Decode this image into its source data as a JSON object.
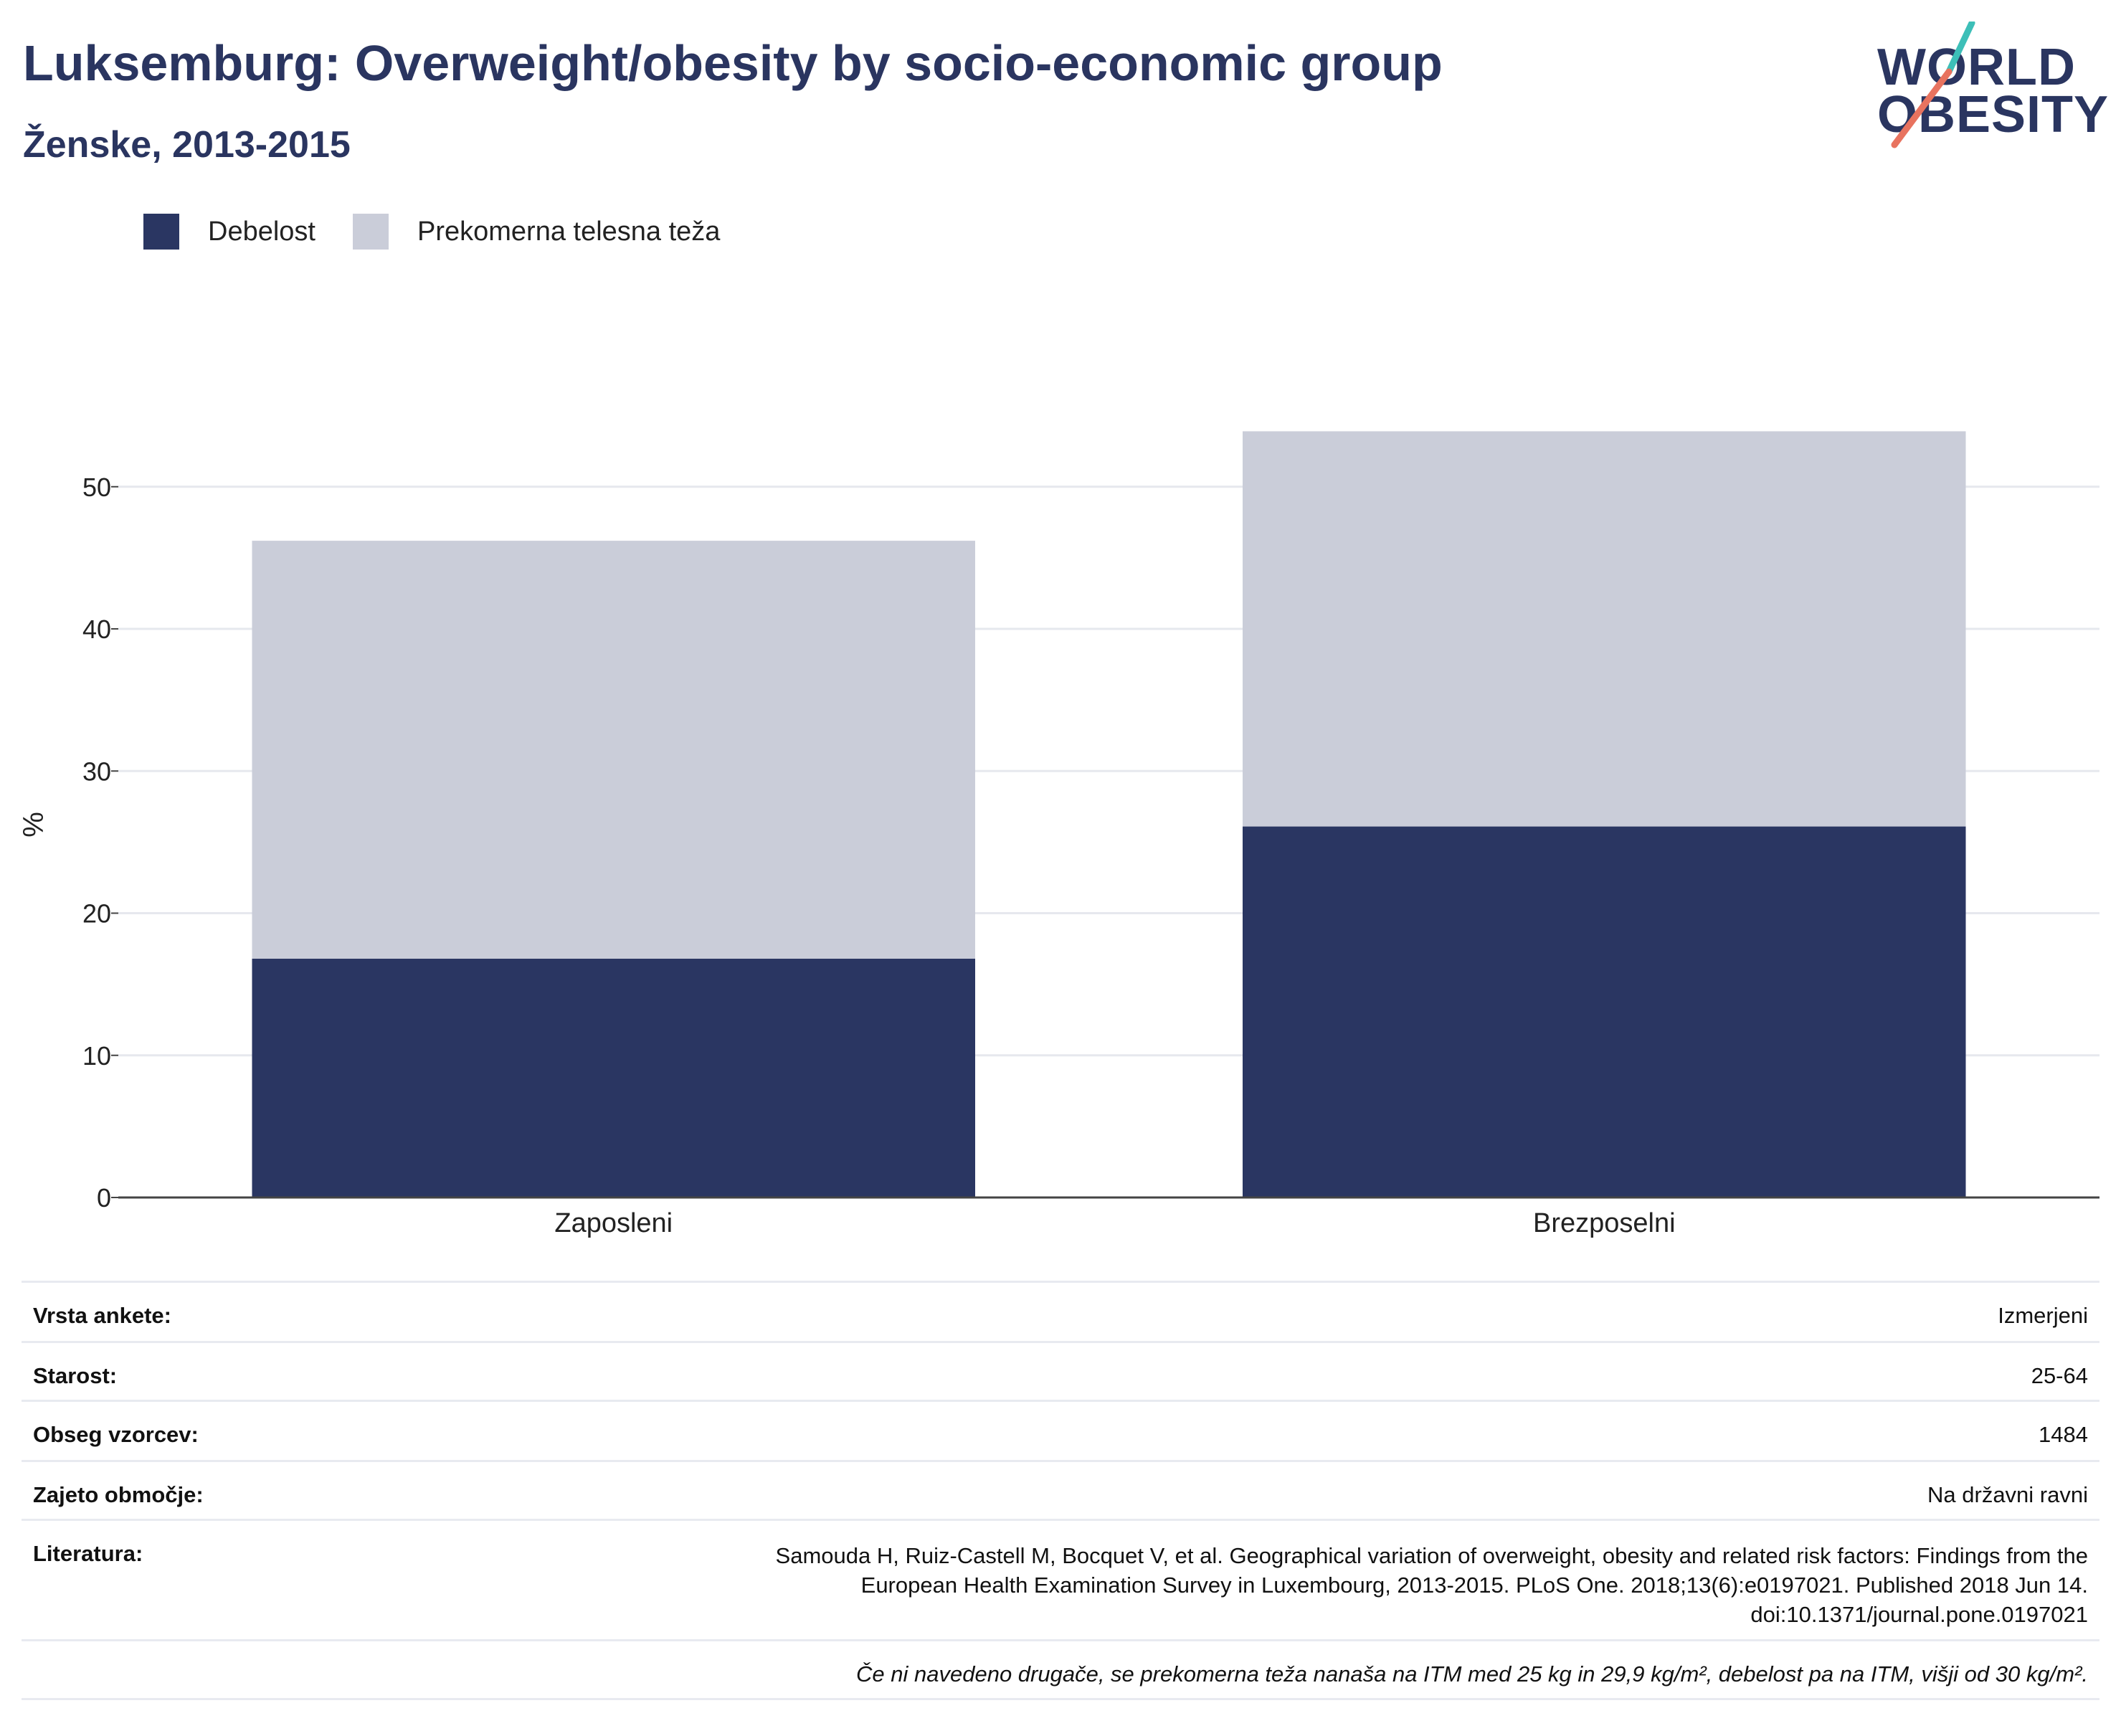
{
  "header": {
    "title": "Luksemburg: Overweight/obesity by socio-economic group",
    "subtitle": "Ženske, 2013-2015"
  },
  "logo": {
    "line1": "WORLD",
    "line2": "OBESITY"
  },
  "chart_data": {
    "type": "bar",
    "stacked": true,
    "categories": [
      "Zaposleni",
      "Brezposelni"
    ],
    "series": [
      {
        "name": "Debelost",
        "values": [
          16.8,
          26.1
        ],
        "color": "#2a3662"
      },
      {
        "name": "Prekomerna telesna teža",
        "values": [
          29.4,
          27.8
        ],
        "color": "#cacdd9"
      }
    ],
    "ylabel": "%",
    "xlabel": "",
    "ylim": [
      0,
      57
    ],
    "yticks": [
      0,
      10,
      20,
      30,
      40,
      50
    ],
    "grid": true,
    "legend": "top-left"
  },
  "details": {
    "rows": [
      {
        "key": "Vrsta ankete:",
        "value": "Izmerjeni"
      },
      {
        "key": "Starost:",
        "value": "25-64"
      },
      {
        "key": "Obseg vzorcev:",
        "value": "1484"
      },
      {
        "key": "Zajeto območje:",
        "value": "Na državni ravni"
      }
    ],
    "literature": {
      "key": "Literatura:",
      "lines": [
        "Samouda H, Ruiz-Castell M, Bocquet V, et al. Geographical variation of overweight, obesity and related risk factors: Findings from the",
        "European Health Examination Survey in Luxembourg, 2013-2015. PLoS One. 2018;13(6):e0197021. Published 2018 Jun 14.",
        "doi:10.1371/journal.pone.0197021"
      ]
    },
    "note": "Če ni navedeno drugače, se prekomerna teža nanaša na ITM med 25 kg in 29,9 kg/m², debelost pa na ITM, višji od 30 kg/m²."
  },
  "colors": {
    "navy": "#2a3662",
    "grey": "#cacdd9",
    "teal": "#3dbfb8",
    "coral": "#e8735f"
  }
}
